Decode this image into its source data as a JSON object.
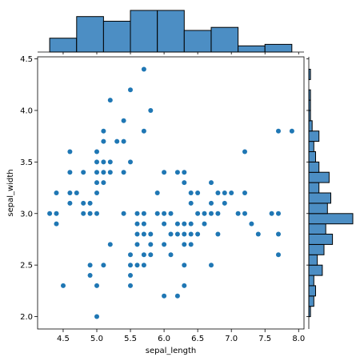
{
  "chart_data": {
    "type": "scatter",
    "xlabel": "sepal_length",
    "ylabel": "sepal_width",
    "xlim": [
      4.12,
      8.08
    ],
    "ylim": [
      1.88,
      4.52
    ],
    "xticks": [
      "4.5",
      "5.0",
      "5.5",
      "6.0",
      "6.5",
      "7.0",
      "7.5",
      "8.0"
    ],
    "yticks": [
      "2.0",
      "2.5",
      "3.0",
      "3.5",
      "4.0",
      "4.5"
    ],
    "x_tick_values": [
      4.5,
      5.0,
      5.5,
      6.0,
      6.5,
      7.0,
      7.5,
      8.0
    ],
    "y_tick_values": [
      2.0,
      2.5,
      3.0,
      3.5,
      4.0,
      4.5
    ],
    "points": [
      [
        4.3,
        3.0
      ],
      [
        4.4,
        3.0
      ],
      [
        4.4,
        3.2
      ],
      [
        4.4,
        2.9
      ],
      [
        4.5,
        2.3
      ],
      [
        4.6,
        3.1
      ],
      [
        4.6,
        3.4
      ],
      [
        4.6,
        3.6
      ],
      [
        4.6,
        3.2
      ],
      [
        4.7,
        3.2
      ],
      [
        4.8,
        3.4
      ],
      [
        4.8,
        3.0
      ],
      [
        4.8,
        3.1
      ],
      [
        4.9,
        3.0
      ],
      [
        4.9,
        3.1
      ],
      [
        4.9,
        2.4
      ],
      [
        4.9,
        2.5
      ],
      [
        5.0,
        3.6
      ],
      [
        5.0,
        3.4
      ],
      [
        5.0,
        3.0
      ],
      [
        5.0,
        3.5
      ],
      [
        5.0,
        3.2
      ],
      [
        5.0,
        3.3
      ],
      [
        5.0,
        2.3
      ],
      [
        5.0,
        2.0
      ],
      [
        5.1,
        3.5
      ],
      [
        5.1,
        3.7
      ],
      [
        5.1,
        3.8
      ],
      [
        5.1,
        3.3
      ],
      [
        5.1,
        3.4
      ],
      [
        5.1,
        2.5
      ],
      [
        5.2,
        3.5
      ],
      [
        5.2,
        3.4
      ],
      [
        5.2,
        4.1
      ],
      [
        5.2,
        2.7
      ],
      [
        5.3,
        3.7
      ],
      [
        5.4,
        3.9
      ],
      [
        5.4,
        3.7
      ],
      [
        5.4,
        3.4
      ],
      [
        5.4,
        3.0
      ],
      [
        5.5,
        4.2
      ],
      [
        5.5,
        3.5
      ],
      [
        5.5,
        2.3
      ],
      [
        5.5,
        2.4
      ],
      [
        5.5,
        2.6
      ],
      [
        5.5,
        2.5
      ],
      [
        5.6,
        2.9
      ],
      [
        5.6,
        3.0
      ],
      [
        5.6,
        2.5
      ],
      [
        5.6,
        2.8
      ],
      [
        5.6,
        2.7
      ],
      [
        5.7,
        4.4
      ],
      [
        5.7,
        3.8
      ],
      [
        5.7,
        2.8
      ],
      [
        5.7,
        2.6
      ],
      [
        5.7,
        3.0
      ],
      [
        5.7,
        2.9
      ],
      [
        5.7,
        2.5
      ],
      [
        5.8,
        4.0
      ],
      [
        5.8,
        2.7
      ],
      [
        5.8,
        2.6
      ],
      [
        5.8,
        2.8
      ],
      [
        5.9,
        3.0
      ],
      [
        5.9,
        3.2
      ],
      [
        6.0,
        2.2
      ],
      [
        6.0,
        2.9
      ],
      [
        6.0,
        2.7
      ],
      [
        6.0,
        3.4
      ],
      [
        6.0,
        3.0
      ],
      [
        6.1,
        2.8
      ],
      [
        6.1,
        3.0
      ],
      [
        6.1,
        2.6
      ],
      [
        6.2,
        2.2
      ],
      [
        6.2,
        2.9
      ],
      [
        6.2,
        2.8
      ],
      [
        6.2,
        3.4
      ],
      [
        6.3,
        3.3
      ],
      [
        6.3,
        2.5
      ],
      [
        6.3,
        2.3
      ],
      [
        6.3,
        2.9
      ],
      [
        6.3,
        2.7
      ],
      [
        6.3,
        2.8
      ],
      [
        6.3,
        3.4
      ],
      [
        6.4,
        3.2
      ],
      [
        6.4,
        2.9
      ],
      [
        6.4,
        2.7
      ],
      [
        6.4,
        2.8
      ],
      [
        6.4,
        3.1
      ],
      [
        6.5,
        2.8
      ],
      [
        6.5,
        3.0
      ],
      [
        6.5,
        3.2
      ],
      [
        6.6,
        2.9
      ],
      [
        6.6,
        3.0
      ],
      [
        6.7,
        3.1
      ],
      [
        6.7,
        3.0
      ],
      [
        6.7,
        2.5
      ],
      [
        6.7,
        3.3
      ],
      [
        6.8,
        2.8
      ],
      [
        6.8,
        3.2
      ],
      [
        6.8,
        3.0
      ],
      [
        6.9,
        3.1
      ],
      [
        6.9,
        3.2
      ],
      [
        7.0,
        3.2
      ],
      [
        7.1,
        3.0
      ],
      [
        7.2,
        3.6
      ],
      [
        7.2,
        3.2
      ],
      [
        7.2,
        3.0
      ],
      [
        7.3,
        2.9
      ],
      [
        7.4,
        2.8
      ],
      [
        7.6,
        3.0
      ],
      [
        7.7,
        3.8
      ],
      [
        7.7,
        2.6
      ],
      [
        7.7,
        2.8
      ],
      [
        7.7,
        3.0
      ],
      [
        7.9,
        3.8
      ]
    ],
    "marginal_x_hist": {
      "bin_edges": [
        4.3,
        4.7,
        5.1,
        5.5,
        5.9,
        6.3,
        6.7,
        7.1,
        7.5,
        7.9
      ],
      "counts": [
        9,
        23,
        20,
        27,
        27,
        14,
        16,
        4,
        5
      ]
    },
    "marginal_y_hist": {
      "bin_edges": [
        2.0,
        2.1,
        2.2,
        2.3,
        2.4,
        2.5,
        2.6,
        2.7,
        2.8,
        2.9,
        3.0,
        3.1,
        3.2,
        3.3,
        3.4,
        3.5,
        3.6,
        3.7,
        3.8,
        3.9,
        4.0,
        4.1,
        4.2,
        4.3,
        4.4
      ],
      "counts": [
        1,
        3,
        4,
        3,
        8,
        5,
        9,
        14,
        10,
        26,
        11,
        13,
        6,
        12,
        6,
        4,
        3,
        6,
        2,
        1,
        1,
        1,
        0,
        1
      ]
    },
    "color": "#1f77b4",
    "bar_face": "#4c8ec4",
    "grid": false
  }
}
